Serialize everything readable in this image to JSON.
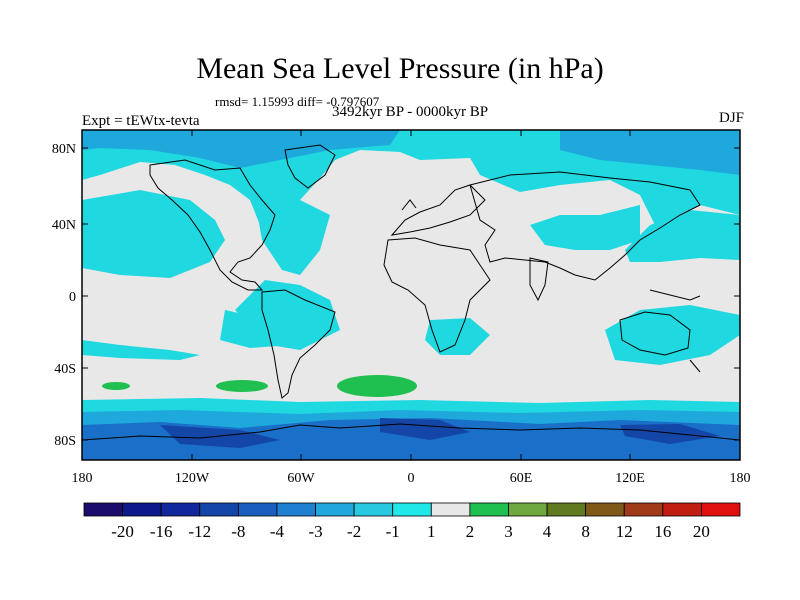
{
  "title": "Mean Sea Level Pressure (in hPa)",
  "stats": "rmsd= 1.15993 diff= -0.797607",
  "experiment": "Expt = tEWtx-tevta",
  "period": "3492kyr BP - 0000kyr BP",
  "season": "DJF",
  "lat_ticks": [
    "80N",
    "40N",
    "0",
    "40S",
    "80S"
  ],
  "lon_ticks": [
    "180",
    "120W",
    "60W",
    "0",
    "60E",
    "120E",
    "180"
  ],
  "colorbar": {
    "labels": [
      "-20",
      "-16",
      "-12",
      "-8",
      "-4",
      "-3",
      "-2",
      "-1",
      "1",
      "2",
      "3",
      "4",
      "8",
      "12",
      "16",
      "20"
    ],
    "colors": [
      "#1a0d6b",
      "#0e1a8c",
      "#10289c",
      "#1446a8",
      "#1a5fbf",
      "#1f7fd1",
      "#20a8dc",
      "#28c8e0",
      "#20e8e8",
      "#e8e8e8",
      "#20c050",
      "#70a840",
      "#607a20",
      "#805818",
      "#a03a18",
      "#c01e10",
      "#e01010"
    ]
  },
  "colors": {
    "neutral": "#e8e8e8",
    "light_blue": "#20d8e0",
    "mid_blue": "#1fa8dc",
    "blue": "#1a6fc8",
    "dark_blue": "#1446a8",
    "green": "#20c050"
  }
}
